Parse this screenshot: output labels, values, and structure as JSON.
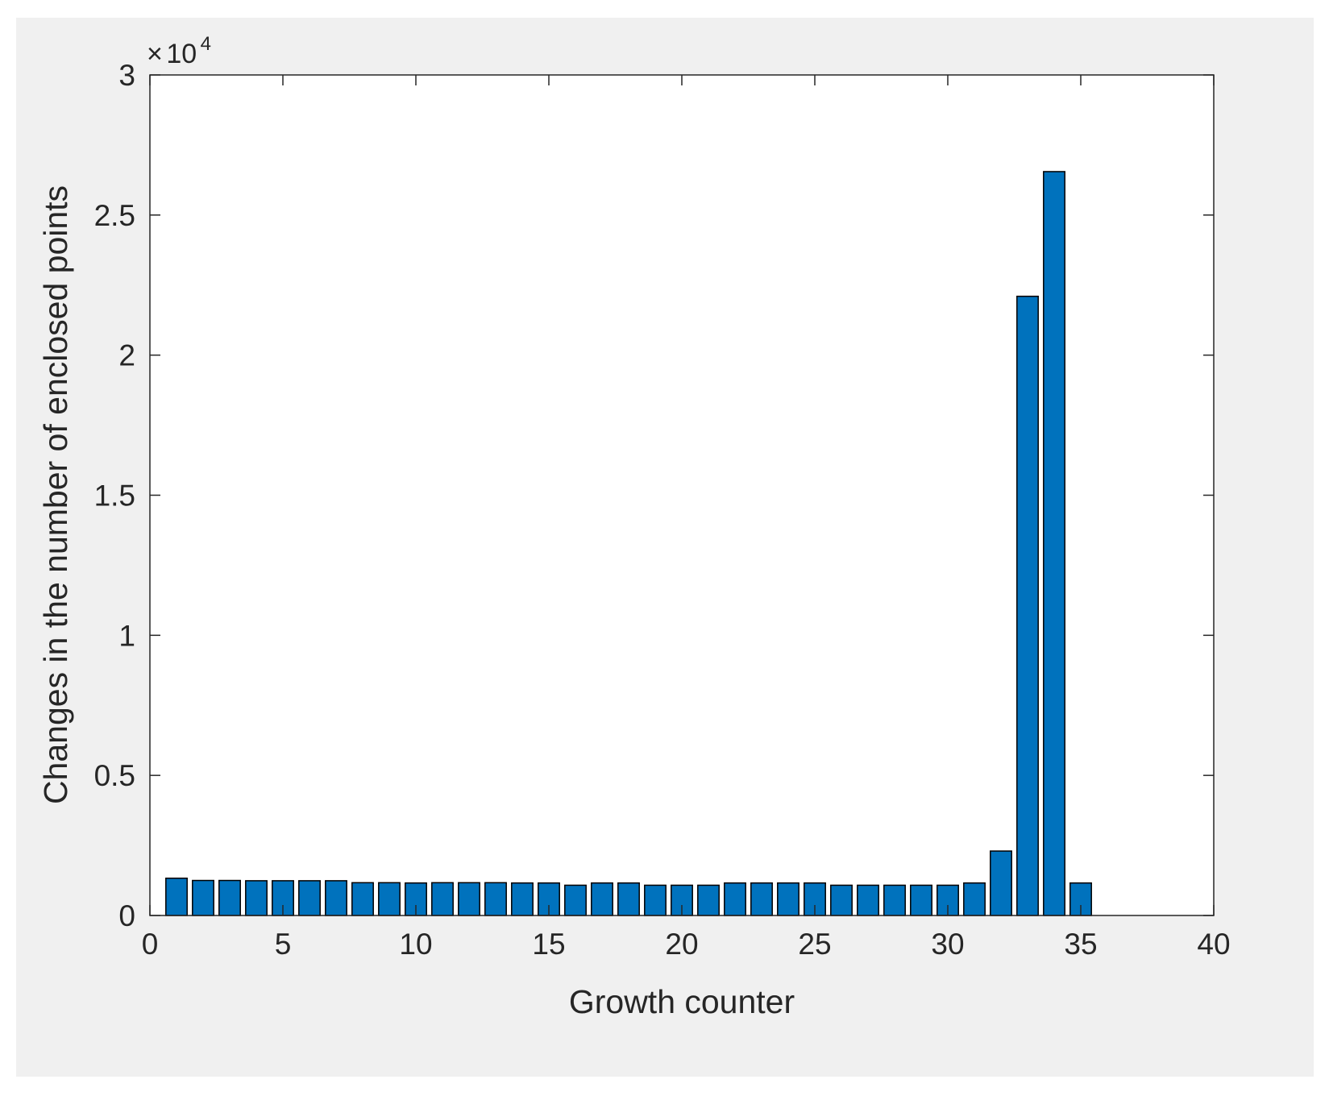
{
  "chart_data": {
    "type": "bar",
    "title": "",
    "xlabel": "Growth counter",
    "ylabel": "Changes in the number of enclosed points",
    "y_exponent_label": {
      "times": "×",
      "base": "10",
      "exponent": "4"
    },
    "xlim": [
      0,
      40
    ],
    "ylim": [
      0,
      30000
    ],
    "xticks": [
      0,
      5,
      10,
      15,
      20,
      25,
      30,
      35,
      40
    ],
    "xtick_labels": [
      "0",
      "5",
      "10",
      "15",
      "20",
      "25",
      "30",
      "35",
      "40"
    ],
    "yticks": [
      0,
      5000,
      10000,
      15000,
      20000,
      25000,
      30000
    ],
    "ytick_labels": [
      "0",
      "0.5",
      "1",
      "1.5",
      "2",
      "2.5",
      "3"
    ],
    "grid": false,
    "bar_color": "#0072bd",
    "x": [
      1,
      2,
      3,
      4,
      5,
      6,
      7,
      8,
      9,
      10,
      11,
      12,
      13,
      14,
      15,
      16,
      17,
      18,
      19,
      20,
      21,
      22,
      23,
      24,
      25,
      26,
      27,
      28,
      29,
      30,
      31,
      32,
      33,
      34,
      35
    ],
    "values": [
      1330,
      1250,
      1250,
      1240,
      1240,
      1240,
      1240,
      1170,
      1170,
      1160,
      1170,
      1170,
      1170,
      1160,
      1160,
      1080,
      1160,
      1160,
      1080,
      1080,
      1080,
      1160,
      1160,
      1160,
      1160,
      1080,
      1080,
      1080,
      1080,
      1080,
      1160,
      2300,
      22100,
      26550,
      1160
    ]
  }
}
